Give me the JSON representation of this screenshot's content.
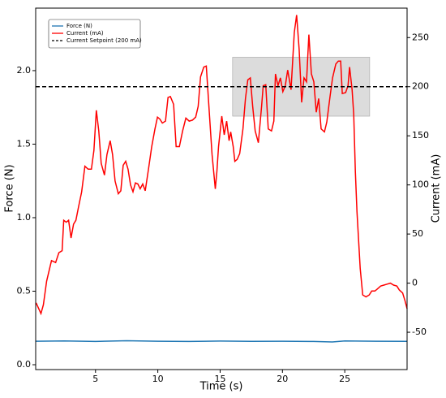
{
  "chart_data": {
    "type": "line",
    "xlabel": "Time (s)",
    "ylabel": "Force (N)",
    "y2label": "Current (mA)",
    "xlim": [
      0.2,
      30.0
    ],
    "xticks": [
      5,
      10,
      15,
      20,
      25
    ],
    "ylim": [
      -0.033,
      2.425
    ],
    "yticks": [
      {
        "value": 0.0,
        "label": "0.0"
      },
      0.5,
      {
        "value": 1.0,
        "label": "1.0"
      },
      1.5,
      {
        "value": 2.0,
        "label": "2.0"
      }
    ],
    "y2lim": [
      -88,
      280
    ],
    "y2ticks": [
      -50,
      0,
      50,
      100,
      150,
      200,
      250
    ],
    "legend": "upper left",
    "series": [
      {
        "name": "Force (N)",
        "color": "#1f77b4",
        "axis": "y",
        "x": [
          0.2,
          2.5,
          5,
          7.5,
          10,
          12.5,
          15,
          17.5,
          20,
          22.5,
          24,
          25,
          27.5,
          30.0
        ],
        "values": [
          0.16,
          0.162,
          0.158,
          0.163,
          0.16,
          0.158,
          0.161,
          0.159,
          0.16,
          0.158,
          0.155,
          0.162,
          0.16,
          0.159
        ]
      },
      {
        "name": "Current (mA)",
        "color": "#ff0000",
        "axis": "y2",
        "x": [
          0.23,
          0.62,
          0.82,
          1.08,
          1.47,
          1.8,
          2.06,
          2.32,
          2.45,
          2.65,
          2.84,
          3.04,
          3.24,
          3.43,
          3.63,
          3.89,
          4.15,
          4.41,
          4.67,
          4.87,
          5.07,
          5.26,
          5.46,
          5.72,
          5.92,
          6.18,
          6.37,
          6.57,
          6.83,
          7.03,
          7.22,
          7.42,
          7.61,
          7.81,
          8.01,
          8.2,
          8.4,
          8.59,
          8.79,
          8.99,
          9.25,
          9.51,
          9.77,
          9.97,
          10.16,
          10.36,
          10.62,
          10.82,
          11.01,
          11.27,
          11.47,
          11.73,
          11.99,
          12.25,
          12.52,
          12.78,
          13.04,
          13.24,
          13.43,
          13.69,
          13.89,
          14.15,
          14.35,
          14.61,
          14.74,
          14.87,
          15.13,
          15.33,
          15.52,
          15.72,
          15.85,
          16.05,
          16.18,
          16.37,
          16.57,
          16.83,
          17.03,
          17.22,
          17.42,
          17.61,
          17.81,
          18.07,
          18.33,
          18.46,
          18.66,
          18.86,
          19.12,
          19.31,
          19.44,
          19.64,
          19.84,
          20.03,
          20.23,
          20.42,
          20.69,
          20.95,
          21.14,
          21.34,
          21.54,
          21.73,
          21.93,
          22.12,
          22.32,
          22.52,
          22.71,
          22.91,
          23.1,
          23.37,
          23.56,
          23.82,
          24.02,
          24.28,
          24.48,
          24.67,
          24.8,
          25.07,
          25.26,
          25.39,
          25.59,
          25.72,
          25.85,
          25.98,
          26.24,
          26.44,
          26.7,
          26.96,
          27.16,
          27.42,
          27.61,
          27.88,
          28.14,
          28.4,
          28.66,
          28.92,
          29.18,
          29.38,
          29.64,
          29.84,
          30.0
        ],
        "values": [
          -20,
          -31,
          -22,
          2,
          23,
          21,
          31,
          33,
          64,
          62,
          64,
          46,
          60,
          64,
          77,
          93,
          119,
          116,
          116,
          135,
          176,
          155,
          122,
          110,
          131,
          145,
          131,
          104,
          91,
          94,
          120,
          124,
          116,
          100,
          93,
          102,
          101,
          96,
          101,
          94,
          116,
          139,
          157,
          169,
          167,
          163,
          165,
          189,
          190,
          182,
          139,
          139,
          155,
          168,
          165,
          166,
          169,
          180,
          210,
          220,
          221,
          170,
          131,
          96,
          114,
          139,
          170,
          151,
          165,
          145,
          154,
          139,
          124,
          126,
          132,
          157,
          188,
          207,
          209,
          180,
          155,
          143,
          180,
          201,
          202,
          157,
          155,
          165,
          213,
          201,
          209,
          195,
          201,
          217,
          197,
          255,
          273,
          238,
          184,
          209,
          205,
          253,
          213,
          205,
          174,
          188,
          157,
          154,
          164,
          190,
          209,
          223,
          226,
          226,
          193,
          194,
          201,
          220,
          197,
          172,
          114,
          73,
          15,
          -12,
          -14,
          -12,
          -8,
          -8,
          -6,
          -3,
          -2,
          -1,
          0,
          -2,
          -3,
          -7,
          -10,
          -18,
          -26
        ]
      }
    ],
    "hlines": [
      {
        "name": "Current Setpoint (200 mA)",
        "value": 200,
        "axis": "y2",
        "color": "#000000",
        "style": "dashed"
      }
    ],
    "spans": [
      {
        "x": [
          16,
          27
        ],
        "y2": [
          170,
          230
        ],
        "color": "#d9d9d9"
      }
    ]
  }
}
